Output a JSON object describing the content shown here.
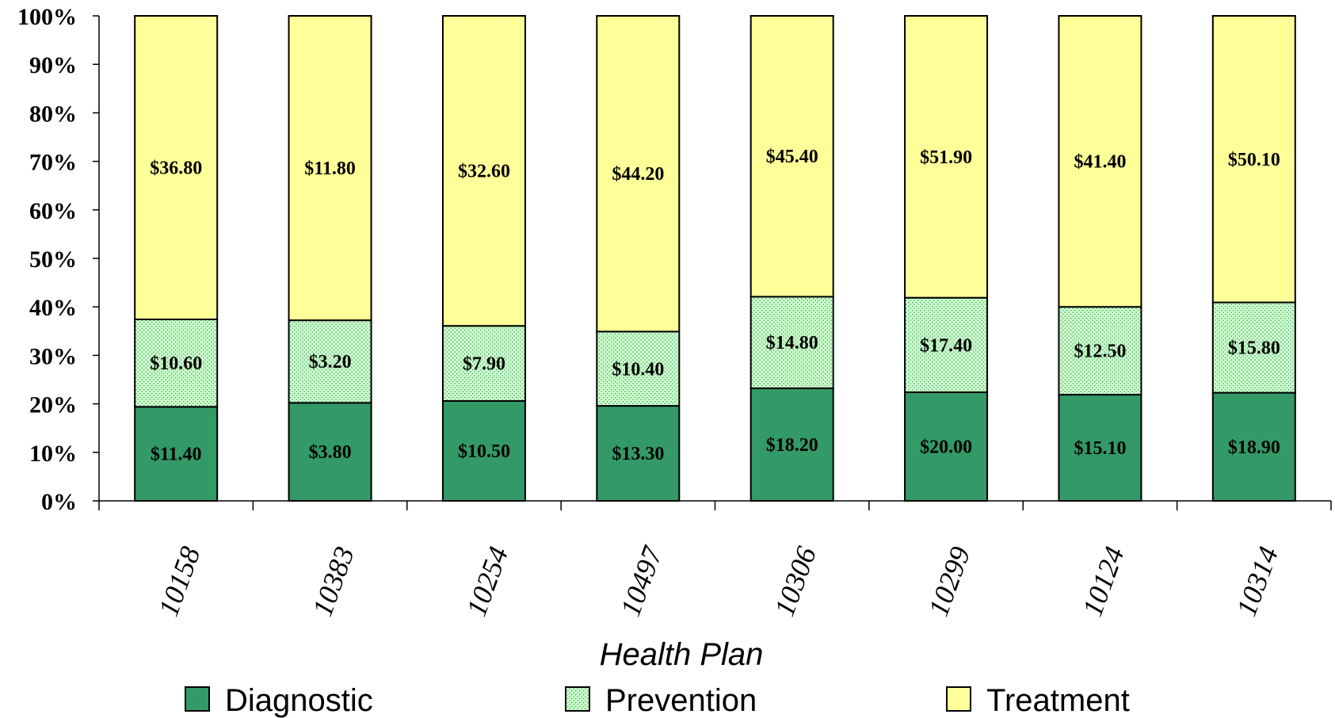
{
  "chart_data": {
    "type": "bar",
    "stacked": true,
    "normalized": true,
    "categories": [
      "10158",
      "10383",
      "10254",
      "10497",
      "10306",
      "10299",
      "10124",
      "10314"
    ],
    "series": [
      {
        "name": "Diagnostic",
        "color": "#339966",
        "pattern": "solid",
        "values": [
          11.4,
          3.8,
          10.5,
          13.3,
          18.2,
          20.0,
          15.1,
          18.9
        ],
        "labels": [
          "$11.40",
          "$3.80",
          "$10.50",
          "$13.30",
          "$18.20",
          "$20.00",
          "$15.10",
          "$18.90"
        ]
      },
      {
        "name": "Prevention",
        "color": "#ccffcc",
        "pattern": "dotted",
        "values": [
          10.6,
          3.2,
          7.9,
          10.4,
          14.8,
          17.4,
          12.5,
          15.8
        ],
        "labels": [
          "$10.60",
          "$3.20",
          "$7.90",
          "$10.40",
          "$14.80",
          "$17.40",
          "$12.50",
          "$15.80"
        ]
      },
      {
        "name": "Treatment",
        "color": "#ffff99",
        "pattern": "solid",
        "values": [
          36.8,
          11.8,
          32.6,
          44.2,
          45.4,
          51.9,
          41.4,
          50.1
        ],
        "labels": [
          "$36.80",
          "$11.80",
          "$32.60",
          "$44.20",
          "$45.40",
          "$51.90",
          "$41.40",
          "$50.10"
        ]
      }
    ],
    "xlabel": "Health Plan",
    "ylabel": "",
    "ylim": [
      0,
      100
    ],
    "yticks": [
      "0%",
      "10%",
      "20%",
      "30%",
      "40%",
      "50%",
      "60%",
      "70%",
      "80%",
      "90%",
      "100%"
    ],
    "grid": false,
    "legend": "bottom"
  }
}
